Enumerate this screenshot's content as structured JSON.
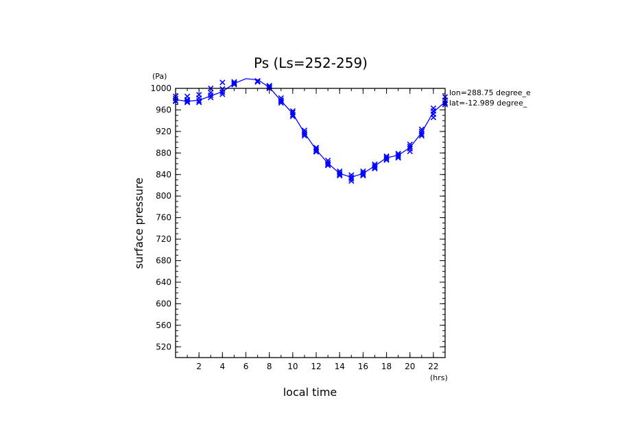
{
  "chart_data": {
    "type": "line",
    "title": "Ps (Ls=252-259)",
    "xlabel": "local time",
    "ylabel": "surface pressure",
    "xunit": "(hrs)",
    "yunit": "(Pa)",
    "xlim": [
      0,
      23
    ],
    "ylim": [
      500,
      1000
    ],
    "x_major_ticks": [
      2,
      4,
      6,
      8,
      10,
      12,
      14,
      16,
      18,
      20,
      22
    ],
    "y_major_ticks": [
      520,
      560,
      600,
      640,
      680,
      720,
      760,
      800,
      840,
      880,
      920,
      960,
      1000
    ],
    "x": [
      0,
      1,
      2,
      3,
      4,
      5,
      6,
      7,
      8,
      9,
      10,
      11,
      12,
      13,
      14,
      15,
      16,
      17,
      18,
      19,
      20,
      21,
      22,
      23
    ],
    "mean": [
      979,
      976,
      978,
      986,
      994,
      1009,
      1018,
      1016,
      1002,
      977,
      953,
      917,
      886,
      861,
      842,
      835,
      842,
      856,
      871,
      876,
      890,
      918,
      956,
      975
    ],
    "samples": [
      [
        985,
        981,
        976,
        977
      ],
      [
        985,
        979,
        976,
        974
      ],
      [
        988,
        982,
        977,
        974
      ],
      [
        1000,
        992,
        987,
        983
      ],
      [
        1011,
        999,
        993,
        989
      ],
      [
        1012,
        1010,
        1007,
        1009
      ],
      [
        1021,
        1019,
        1017,
        1016
      ],
      [
        1024,
        1019,
        1014,
        1012
      ],
      [
        1005,
        1003,
        1000,
        1001
      ],
      [
        982,
        978,
        976,
        973
      ],
      [
        958,
        955,
        951,
        948
      ],
      [
        922,
        918,
        915,
        912
      ],
      [
        890,
        887,
        884,
        882
      ],
      [
        866,
        862,
        859,
        857
      ],
      [
        846,
        843,
        840,
        838
      ],
      [
        839,
        835,
        832,
        828
      ],
      [
        846,
        843,
        840,
        838
      ],
      [
        859,
        856,
        853,
        851
      ],
      [
        874,
        872,
        869,
        867
      ],
      [
        879,
        876,
        873,
        871
      ],
      [
        896,
        892,
        888,
        883
      ],
      [
        924,
        920,
        915,
        912
      ],
      [
        963,
        958,
        952,
        946
      ],
      [
        984,
        978,
        973,
        970
      ]
    ],
    "series_color": "#0000ff",
    "annotations": [
      "lon=288.75 degree_e",
      "lat=-12.989 degree_"
    ],
    "grid": false,
    "legend": "none"
  }
}
